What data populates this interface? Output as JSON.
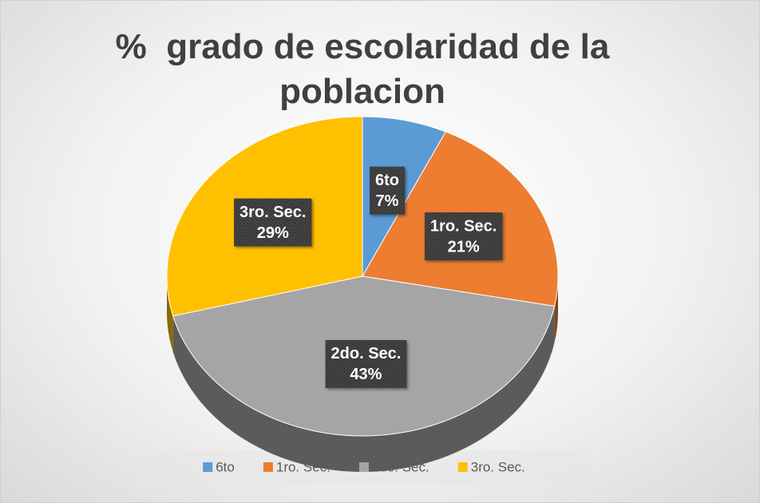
{
  "chart_data": {
    "type": "pie",
    "title": "%  grado de escolaridad de la poblacion",
    "categories": [
      "6to",
      "1ro. Sec.",
      "2do. Sec.",
      "3ro. Sec."
    ],
    "values": [
      7,
      21,
      43,
      29
    ],
    "value_labels": [
      "7%",
      "21%",
      "43%",
      "29%"
    ],
    "colors": [
      "#5b9bd5",
      "#ed7d31",
      "#a5a5a5",
      "#ffc000"
    ],
    "legend": "bottom",
    "style": "3d"
  }
}
